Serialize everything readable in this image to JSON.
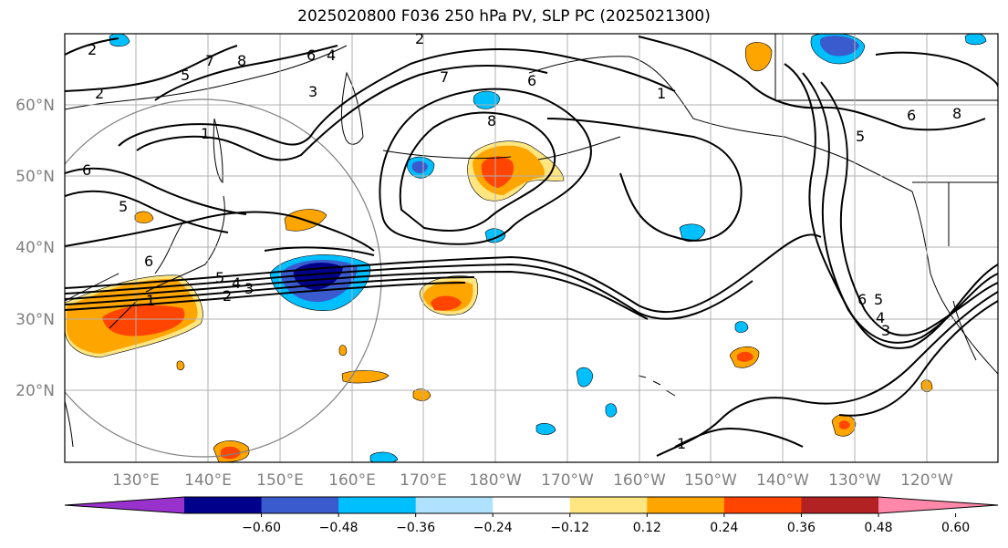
{
  "title": "2025020800 F036 250 hPa PV, SLP PC (2025021300)",
  "lat_labels": [
    "60°N",
    "50°N",
    "40°N",
    "30°N",
    "20°N"
  ],
  "lon_labels": [
    "130°E",
    "140°E",
    "150°E",
    "160°E",
    "170°E",
    "180°W",
    "170°W",
    "160°W",
    "150°W",
    "140°W",
    "130°W",
    "120°W"
  ],
  "colorbar": {
    "ticks": [
      "−0.60",
      "−0.48",
      "−0.36",
      "−0.24",
      "−0.12",
      "0.12",
      "0.24",
      "0.36",
      "0.48",
      "0.60"
    ],
    "colors": [
      "#9932cc",
      "#00008b",
      "#3a5bcd",
      "#00bfff",
      "#b0e2ff",
      "#ffffff",
      "#ffe680",
      "#ffa500",
      "#ff4500",
      "#b22222",
      "#ff88aa"
    ]
  },
  "contour_labels": [
    "2",
    "2",
    "5",
    "7",
    "8",
    "6",
    "4",
    "3",
    "1",
    "2",
    "7",
    "6",
    "1",
    "8",
    "1",
    "6",
    "5",
    "5",
    "6",
    "5",
    "4",
    "3",
    "2",
    "1",
    "6",
    "5",
    "4",
    "3",
    "6",
    "8"
  ]
}
